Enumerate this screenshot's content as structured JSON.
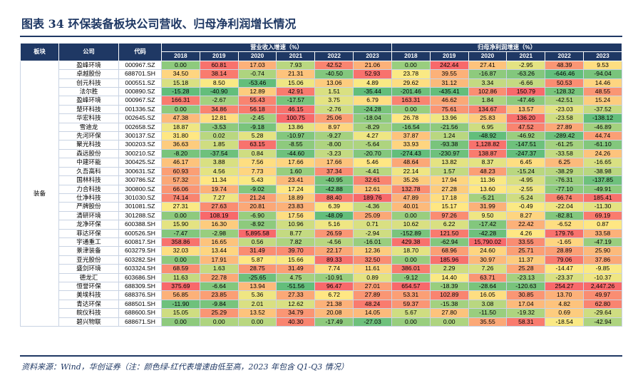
{
  "title": "图表 34 环保装备板块公司营收、归母净利润增长情况",
  "source": "资料来源：Wind，华创证券（注：颜色绿-红代表增速由低至高，2023 年包含 Q1-Q3 情况）",
  "headers": {
    "sector": "板块",
    "company": "公司",
    "code": "代码",
    "revenue_group": "营业收入增速（%）",
    "profit_group": "归母净利润增速（%）",
    "years": [
      "2018",
      "2019",
      "2020",
      "2021",
      "2022",
      "2023"
    ]
  },
  "sector_label": "装备",
  "colors": {
    "red": "#e8342e",
    "header": "#1f3864"
  },
  "rows": [
    {
      "company": "盈峰环境",
      "code": "000967.SZ",
      "rev": [
        "0.00",
        "60.81",
        "17.03",
        "7.93",
        "42.52",
        "21.06"
      ],
      "np": [
        "0.00",
        "242.44",
        "27.41",
        "-2.95",
        "48.39",
        "9.53"
      ]
    },
    {
      "company": "卓越股份",
      "code": "688701.SH",
      "rev": [
        "34.50",
        "38.14",
        "-0.74",
        "21.31",
        "-40.50",
        "52.93"
      ],
      "np": [
        "23.78",
        "39.55",
        "-16.87",
        "-63.26",
        "-646.46",
        "-94.04"
      ]
    },
    {
      "company": "创元科技",
      "code": "000551.SZ",
      "rev": [
        "15.18",
        "8.50",
        "-53.46",
        "15.06",
        "13.06",
        "4.89"
      ],
      "np": [
        "29.62",
        "31.12",
        "3.34",
        "-6.66",
        "50.53",
        "14.46"
      ]
    },
    {
      "company": "法尔胜",
      "code": "000890.SZ",
      "rev": [
        "-15.28",
        "-40.90",
        "12.89",
        "42.91",
        "1.51",
        "-35.44"
      ],
      "np": [
        "-201.46",
        "-435.41",
        "102.86",
        "150.79",
        "-128.32",
        "48.55"
      ]
    },
    {
      "company": "盈峰环境",
      "code": "000967.SZ",
      "rev": [
        "166.31",
        "-2.67",
        "55.43",
        "-17.57",
        "3.75",
        "6.79"
      ],
      "np": [
        "163.31",
        "46.62",
        "1.84",
        "-47.46",
        "-42.51",
        "15.24"
      ]
    },
    {
      "company": "楚环科技",
      "code": "001336.SZ",
      "rev": [
        "0.00",
        "34.86",
        "56.18",
        "46.15",
        "-2.76",
        "-24.28"
      ],
      "np": [
        "0.00",
        "75.61",
        "134.67",
        "13.57",
        "-23.03",
        "-37.52"
      ]
    },
    {
      "company": "华宏科技",
      "code": "002645.SZ",
      "rev": [
        "47.38",
        "12.81",
        "-2.45",
        "100.75",
        "25.06",
        "-18.04"
      ],
      "np": [
        "26.78",
        "13.96",
        "25.83",
        "136.20",
        "-23.58",
        "-138.12"
      ]
    },
    {
      "company": "雪迪龙",
      "code": "002658.SZ",
      "rev": [
        "18.87",
        "-3.53",
        "-9.18",
        "13.86",
        "8.97",
        "-8.29"
      ],
      "np": [
        "-16.54",
        "-21.56",
        "6.95",
        "47.52",
        "27.89",
        "-46.89"
      ]
    },
    {
      "company": "先河环保",
      "code": "300137.SZ",
      "rev": [
        "31.80",
        "0.02",
        "5.28",
        "-10.97",
        "-9.27",
        "4.27"
      ],
      "np": [
        "37.87",
        "1.24",
        "-48.92",
        "-46.92",
        "-289.42",
        "44.74"
      ]
    },
    {
      "company": "聚光科技",
      "code": "300203.SZ",
      "rev": [
        "36.63",
        "1.85",
        "63.15",
        "-8.55",
        "-8.00",
        "-5.64"
      ],
      "np": [
        "33.93",
        "-93.38",
        "1,128.82",
        "-147.51",
        "-61.25",
        "-61.10"
      ]
    },
    {
      "company": "森远股份",
      "code": "300210.SZ",
      "rev": [
        "-8.20",
        "-37.54",
        "0.84",
        "-44.60",
        "-3.23",
        "-20.70"
      ],
      "np": [
        "-274.43",
        "-230.97",
        "138.87",
        "-247.37",
        "-33.58",
        "24.26"
      ]
    },
    {
      "company": "中建环能",
      "code": "300425.SZ",
      "rev": [
        "46.17",
        "3.88",
        "7.56",
        "17.66",
        "17.66",
        "5.46"
      ],
      "np": [
        "48.64",
        "13.82",
        "8.37",
        "6.45",
        "6.25",
        "-16.65"
      ]
    },
    {
      "company": "久吾高科",
      "code": "300631.SZ",
      "rev": [
        "60.93",
        "4.56",
        "7.73",
        "1.60",
        "37.34",
        "-4.41"
      ],
      "np": [
        "22.14",
        "1.57",
        "48.23",
        "-15.24",
        "-38.29",
        "-38.98"
      ]
    },
    {
      "company": "国林科技",
      "code": "300786.SZ",
      "rev": [
        "57.32",
        "11.34",
        "5.43",
        "23.41",
        "-40.95",
        "32.61"
      ],
      "np": [
        "35.26",
        "17.94",
        "11.36",
        "-4.95",
        "-76.31",
        "-137.85"
      ]
    },
    {
      "company": "力合科技",
      "code": "300800.SZ",
      "rev": [
        "66.06",
        "19.74",
        "-9.02",
        "17.24",
        "-42.88",
        "12.61"
      ],
      "np": [
        "132.78",
        "27.28",
        "13.60",
        "-2.55",
        "-77.10",
        "-49.91"
      ]
    },
    {
      "company": "仕净科技",
      "code": "301030.SZ",
      "rev": [
        "74.14",
        "7.27",
        "21.24",
        "18.89",
        "88.40",
        "189.76"
      ],
      "np": [
        "47.89",
        "17.18",
        "-5.21",
        "-5.24",
        "66.74",
        "185.41"
      ]
    },
    {
      "company": "严牌股份",
      "code": "301081.SZ",
      "rev": [
        "27.31",
        "27.63",
        "20.81",
        "23.83",
        "6.39",
        "-4.36"
      ],
      "np": [
        "40.01",
        "15.17",
        "31.99",
        "-0.49",
        "-22.04",
        "-11.30"
      ]
    },
    {
      "company": "清研环境",
      "code": "301288.SZ",
      "rev": [
        "0.00",
        "108.19",
        "-6.90",
        "17.56",
        "-48.09",
        "25.09"
      ],
      "np": [
        "0.00",
        "97.26",
        "9.50",
        "8.27",
        "-82.81",
        "69.19"
      ]
    },
    {
      "company": "龙净环保",
      "code": "600388.SH",
      "rev": [
        "15.90",
        "16.30",
        "-8.92",
        "10.96",
        "5.16",
        "0.71"
      ],
      "np": [
        "10.62",
        "6.22",
        "-17.42",
        "22.42",
        "-6.52",
        "0.87"
      ]
    },
    {
      "company": "菲达环保",
      "code": "600526.SH",
      "rev": [
        "-7.47",
        "-2.98",
        "5,895.58",
        "8.77",
        "26.59",
        "-2.94"
      ],
      "np": [
        "-152.89",
        "121.50",
        "-42.28",
        "4.26",
        "179.76",
        "33.58"
      ]
    },
    {
      "company": "宇通重工",
      "code": "600817.SH",
      "rev": [
        "358.86",
        "16.65",
        "0.56",
        "7.82",
        "-4.56",
        "-16.01"
      ],
      "np": [
        "429.38",
        "-62.94",
        "15,790.02",
        "33.55",
        "-1.65",
        "-47.19"
      ]
    },
    {
      "company": "景津装备",
      "code": "603279.SH",
      "rev": [
        "32.03",
        "13.44",
        "31.49",
        "39.70",
        "22.17",
        "12.36"
      ],
      "np": [
        "18.70",
        "68.96",
        "24.60",
        "25.71",
        "28.89",
        "25.90"
      ]
    },
    {
      "company": "亚光股份",
      "code": "603282.SH",
      "rev": [
        "0.00",
        "17.91",
        "5.87",
        "15.66",
        "89.33",
        "32.50"
      ],
      "np": [
        "0.00",
        "185.96",
        "30.97",
        "11.37",
        "79.06",
        "37.86"
      ]
    },
    {
      "company": "盛剑环境",
      "code": "603324.SH",
      "rev": [
        "68.59",
        "1.63",
        "28.75",
        "31.49",
        "7.74",
        "11.61"
      ],
      "np": [
        "386.01",
        "2.29",
        "7.26",
        "25.28",
        "-14.47",
        "-9.85"
      ]
    },
    {
      "company": "德龙汇",
      "code": "603686.SH",
      "rev": [
        "11.63",
        "22.78",
        "-25.65",
        "4.75",
        "-10.91",
        "0.89"
      ],
      "np": [
        "-9.12",
        "14.40",
        "63.71",
        "-23.13",
        "-23.37",
        "-10.37"
      ]
    },
    {
      "company": "恒誉环保",
      "code": "688309.SH",
      "rev": [
        "375.69",
        "-6.64",
        "13.94",
        "-51.56",
        "96.47",
        "27.01"
      ],
      "np": [
        "654.57",
        "-18.39",
        "-28.64",
        "-120.63",
        "254.27",
        "2,447.26"
      ]
    },
    {
      "company": "美埃科技",
      "code": "688376.SH",
      "rev": [
        "56.85",
        "23.85",
        "5.36",
        "27.33",
        "6.72",
        "27.89"
      ],
      "np": [
        "53.31",
        "102.89",
        "16.05",
        "30.85",
        "13.70",
        "49.97"
      ]
    },
    {
      "company": "青达环保",
      "code": "688501.SH",
      "rev": [
        "-11.90",
        "-9.84",
        "2.01",
        "12.62",
        "21.38",
        "48.24"
      ],
      "np": [
        "59.37",
        "-15.38",
        "3.08",
        "17.04",
        "4.82",
        "62.80"
      ]
    },
    {
      "company": "皖仪科技",
      "code": "688600.SH",
      "rev": [
        "15.05",
        "25.29",
        "13.52",
        "34.79",
        "20.08",
        "14.05"
      ],
      "np": [
        "5.67",
        "27.80",
        "-11.50",
        "-19.32",
        "0.69",
        "-29.64"
      ]
    },
    {
      "company": "碧兴物联",
      "code": "688671.SH",
      "rev": [
        "0.00",
        "0.00",
        "0.00",
        "40.30",
        "-17.49",
        "-27.03"
      ],
      "np": [
        "0.00",
        "0.00",
        "35.55",
        "58.31",
        "-18.54",
        "-42.94"
      ]
    }
  ]
}
